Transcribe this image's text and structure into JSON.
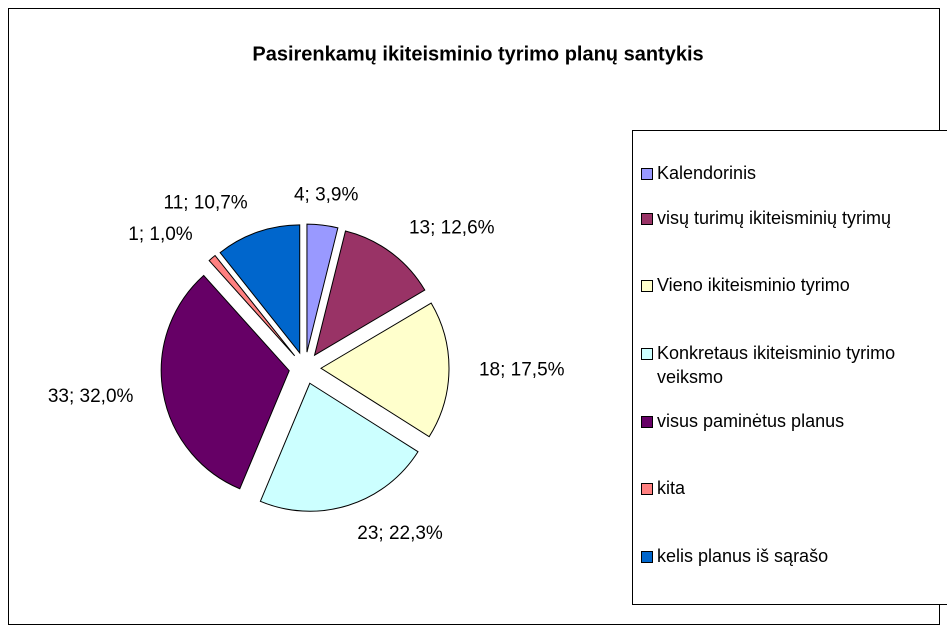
{
  "chart_data": {
    "type": "pie",
    "title": "Pasirenkamų ikiteisminio tyrimo planų santykis",
    "categories": [
      "Kalendorinis",
      "visų turimų ikiteisminių tyrimų",
      "Vieno ikiteisminio tyrimo",
      "Konkretaus ikiteisminio tyrimo veiksmo",
      "visus paminėtus planus",
      "kita",
      "kelis planus iš sąrašo"
    ],
    "values": [
      4,
      13,
      18,
      23,
      33,
      1,
      11
    ],
    "value_labels": [
      "4; 3,9%",
      "13; 12,6%",
      "18; 17,5%",
      "23; 22,3%",
      "33; 32,0%",
      "1; 1,0%",
      "11; 10,7%"
    ],
    "colors": [
      "#9999ff",
      "#993366",
      "#ffffcc",
      "#ccffff",
      "#660066",
      "#ff8080",
      "#0066cc"
    ],
    "legend": "right"
  }
}
